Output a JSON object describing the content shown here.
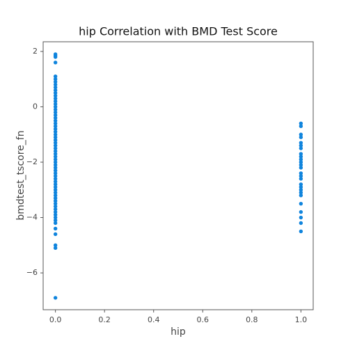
{
  "chart_data": {
    "type": "scatter",
    "title": "hip Correlation with BMD Test Score",
    "x_label": "hip",
    "y_label": "bmdtest_tscore_fn",
    "series": [
      {
        "name": "hip",
        "color": "#0f84dd",
        "x": [
          0,
          0,
          0,
          0,
          0,
          0,
          0,
          0,
          0,
          0,
          0,
          0,
          0,
          0,
          0,
          0,
          0,
          0,
          0,
          0,
          0,
          0,
          0,
          0,
          0,
          0,
          0,
          0,
          0,
          0,
          0,
          0,
          0,
          0,
          0,
          0,
          0,
          0,
          0,
          0,
          0,
          0,
          0,
          0,
          0,
          0,
          0,
          0,
          0,
          0,
          0,
          0,
          0,
          0,
          0,
          0,
          0,
          0,
          0,
          0,
          0,
          0,
          0,
          1,
          1,
          1,
          1,
          1,
          1,
          1,
          1,
          1,
          1,
          1,
          1,
          1,
          1,
          1,
          1,
          1,
          1,
          1,
          1,
          1,
          1,
          1,
          1,
          1,
          1
        ],
        "values": [
          1.9,
          1.85,
          1.8,
          1.6,
          1.1,
          1.0,
          0.9,
          0.8,
          0.7,
          0.6,
          0.5,
          0.4,
          0.3,
          0.2,
          0.1,
          0,
          -0.1,
          -0.2,
          -0.3,
          -0.4,
          -0.5,
          -0.6,
          -0.7,
          -0.8,
          -0.9,
          -1.0,
          -1.1,
          -1.2,
          -1.3,
          -1.4,
          -1.5,
          -1.6,
          -1.7,
          -1.8,
          -1.9,
          -2.0,
          -2.1,
          -2.2,
          -2.3,
          -2.4,
          -2.5,
          -2.6,
          -2.7,
          -2.8,
          -2.9,
          -3.0,
          -3.1,
          -3.2,
          -3.3,
          -3.4,
          -3.5,
          -3.6,
          -3.7,
          -3.8,
          -3.9,
          -4.0,
          -4.1,
          -4.2,
          -4.4,
          -4.6,
          -5.0,
          -5.1,
          -6.9,
          -0.6,
          -0.7,
          -1.0,
          -1.1,
          -1.3,
          -1.4,
          -1.5,
          -1.7,
          -1.8,
          -1.9,
          -2.0,
          -2.1,
          -2.2,
          -2.4,
          -2.5,
          -2.6,
          -2.8,
          -2.9,
          -3.0,
          -3.1,
          -3.2,
          -3.5,
          -3.8,
          -4.0,
          -4.2,
          -4.5
        ]
      }
    ],
    "xlim": [
      -0.05,
      1.05
    ],
    "xticks": [
      {
        "value": 0,
        "label": "0.0"
      },
      {
        "value": 0.2,
        "label": "0.2"
      },
      {
        "value": 0.4,
        "label": "0.4"
      },
      {
        "value": 0.6,
        "label": "0.6"
      },
      {
        "value": 0.8,
        "label": "0.8"
      },
      {
        "value": 1,
        "label": "1.0"
      }
    ],
    "ylim": [
      -7.33,
      2.35
    ],
    "yticks": [
      {
        "value": -6,
        "label": "−6"
      },
      {
        "value": -4,
        "label": "−4"
      },
      {
        "value": -2,
        "label": "−2"
      },
      0,
      2
    ]
  }
}
